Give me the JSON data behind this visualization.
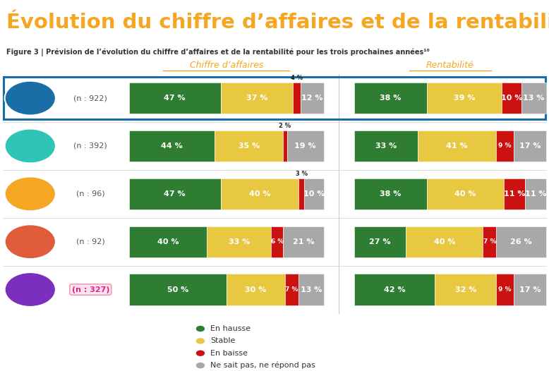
{
  "title": "Évolution du chiffre d’affaires et de la rentabilité",
  "subtitle": "Figure 3 | Prévision de l’évolution du chiffre d’affaires et de la rentabilité pour les trois prochaines années¹⁰",
  "col_headers": [
    "Chiffre d’affaires",
    "Rentabilité"
  ],
  "rows": [
    {
      "label": "(n : 922)",
      "highlight": true,
      "pink_label": false,
      "icon_color": "#1a6ea8",
      "ca": [
        47,
        37,
        4,
        12
      ],
      "rent": [
        38,
        39,
        10,
        13
      ]
    },
    {
      "label": "(n : 392)",
      "highlight": false,
      "pink_label": false,
      "icon_color": "#2ec4b6",
      "ca": [
        44,
        35,
        2,
        19
      ],
      "rent": [
        33,
        41,
        9,
        17
      ]
    },
    {
      "label": "(n : 96)",
      "highlight": false,
      "pink_label": false,
      "icon_color": "#f5a623",
      "ca": [
        47,
        40,
        3,
        10
      ],
      "rent": [
        38,
        40,
        11,
        11
      ]
    },
    {
      "label": "(n : 92)",
      "highlight": false,
      "pink_label": false,
      "icon_color": "#e05c3a",
      "ca": [
        40,
        33,
        6,
        21
      ],
      "rent": [
        27,
        40,
        7,
        26
      ]
    },
    {
      "label": "(n : 327)",
      "highlight": false,
      "pink_label": true,
      "icon_color": "#7b2fbe",
      "ca": [
        50,
        30,
        7,
        13
      ],
      "rent": [
        42,
        32,
        9,
        17
      ]
    }
  ],
  "seg_colors": [
    "#2e7d32",
    "#e8c840",
    "#cc1111",
    "#a8a8a8"
  ],
  "legend_labels": [
    "En hausse",
    "Stable",
    "En baisse",
    "Ne sait pas, ne répond pas"
  ],
  "title_color": "#f5a623",
  "subtitle_color": "#333333",
  "header_color": "#f5a623",
  "label_color_default": "#555555",
  "label_color_pink": "#e91e8c",
  "highlight_border_color": "#1a6ea8",
  "bg_color": "#ffffff"
}
